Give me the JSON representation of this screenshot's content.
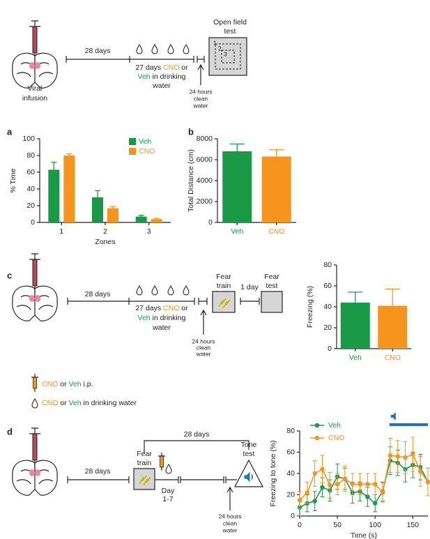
{
  "chart_data": [
    {
      "type": "bar",
      "panel": "a",
      "xlabel": "Zones",
      "ylabel": "% Time",
      "categories": [
        "1",
        "2",
        "3"
      ],
      "series": [
        {
          "name": "Veh",
          "color": "#1a9a46",
          "values": [
            63,
            30,
            7
          ],
          "errors": [
            9,
            8,
            1.5
          ]
        },
        {
          "name": "CNO",
          "color": "#f7941d",
          "values": [
            80,
            17,
            4
          ],
          "errors": [
            2,
            2,
            1
          ]
        }
      ],
      "ylim": [
        0,
        100
      ],
      "yticks": [
        0,
        20,
        40,
        60,
        80,
        100
      ],
      "legend": "top-right"
    },
    {
      "type": "bar",
      "panel": "b",
      "ylabel": "Total Distance (cm)",
      "categories": [
        "Veh",
        "CNO"
      ],
      "values": [
        6800,
        6300
      ],
      "errors": [
        700,
        650
      ],
      "colors": [
        "#1a9a46",
        "#f7941d"
      ],
      "ylim": [
        0,
        8000
      ],
      "yticks": [
        0,
        2000,
        4000,
        6000,
        8000
      ]
    },
    {
      "type": "bar",
      "panel": "c",
      "ylabel": "Freezing (%)",
      "categories": [
        "Veh",
        "CNO"
      ],
      "values": [
        44,
        41
      ],
      "errors": [
        10,
        16
      ],
      "colors": [
        "#1a9a46",
        "#f7941d"
      ],
      "ylim": [
        0,
        80
      ],
      "yticks": [
        0,
        20,
        40,
        60,
        80
      ]
    },
    {
      "type": "line",
      "panel": "d",
      "xlabel": "Time (s)",
      "ylabel": "Freezing to tone (%)",
      "x": [
        0,
        10,
        20,
        30,
        40,
        50,
        60,
        70,
        80,
        90,
        100,
        110,
        120,
        130,
        140,
        150,
        160,
        170
      ],
      "series": [
        {
          "name": "Veh",
          "color": "#1a9a46",
          "values": [
            8,
            12,
            14,
            27,
            24,
            37,
            35,
            22,
            23,
            18,
            12,
            23,
            52,
            50,
            44,
            48,
            46,
            32
          ],
          "errors": [
            8,
            8,
            9,
            9,
            10,
            12,
            10,
            10,
            9,
            9,
            8,
            9,
            13,
            12,
            12,
            12,
            12,
            13
          ]
        },
        {
          "name": "CNO",
          "color": "#f7941d",
          "values": [
            15,
            22,
            40,
            44,
            29,
            30,
            35,
            30,
            30,
            30,
            30,
            22,
            57,
            56,
            55,
            58,
            42,
            32
          ],
          "errors": [
            8,
            10,
            12,
            13,
            12,
            10,
            12,
            10,
            10,
            10,
            10,
            9,
            16,
            15,
            15,
            16,
            14,
            13
          ]
        }
      ],
      "xlim": [
        0,
        170
      ],
      "xticks": [
        0,
        50,
        100,
        150
      ],
      "ylim": [
        0,
        80
      ],
      "yticks": [
        0,
        20,
        40,
        60,
        80
      ],
      "tone_interval": [
        119,
        170
      ],
      "tone_color": "#1b75bb",
      "legend": "top-left"
    }
  ],
  "protocol_a": {
    "infusion": [
      "Viral",
      "infusion"
    ],
    "delay": "28 days",
    "treatment": [
      "27 days ",
      "CNO",
      " or"
    ],
    "treatment2": [
      "Veh",
      " in drinking"
    ],
    "treatment3": "water",
    "test": [
      "Open field",
      "test"
    ],
    "zones": [
      "1",
      "2",
      "3"
    ],
    "wash": [
      "24 hours",
      "clean",
      "water"
    ]
  },
  "protocol_c": {
    "delay": "28 days",
    "treatment": [
      "27 days ",
      "CNO",
      " or"
    ],
    "treatment2": [
      "Veh",
      " in drinking"
    ],
    "treatment3": "water",
    "train": [
      "Fear",
      "train"
    ],
    "gap": "1 day",
    "test": [
      "Fear",
      "test"
    ],
    "wash": [
      "24 hours",
      "clean",
      "water"
    ]
  },
  "key": {
    "ip": [
      "CNO",
      " or ",
      "Veh",
      " i.p."
    ],
    "water": [
      "CNO",
      " or ",
      "Veh",
      " in drinking water"
    ]
  },
  "protocol_d": {
    "delay": "28 days",
    "train": [
      "Fear",
      "train"
    ],
    "delay2": "28 days",
    "days": [
      "Day",
      "1-7"
    ],
    "test": [
      "Tone",
      "test"
    ],
    "wash": [
      "24 hours",
      "clean",
      "water"
    ]
  }
}
